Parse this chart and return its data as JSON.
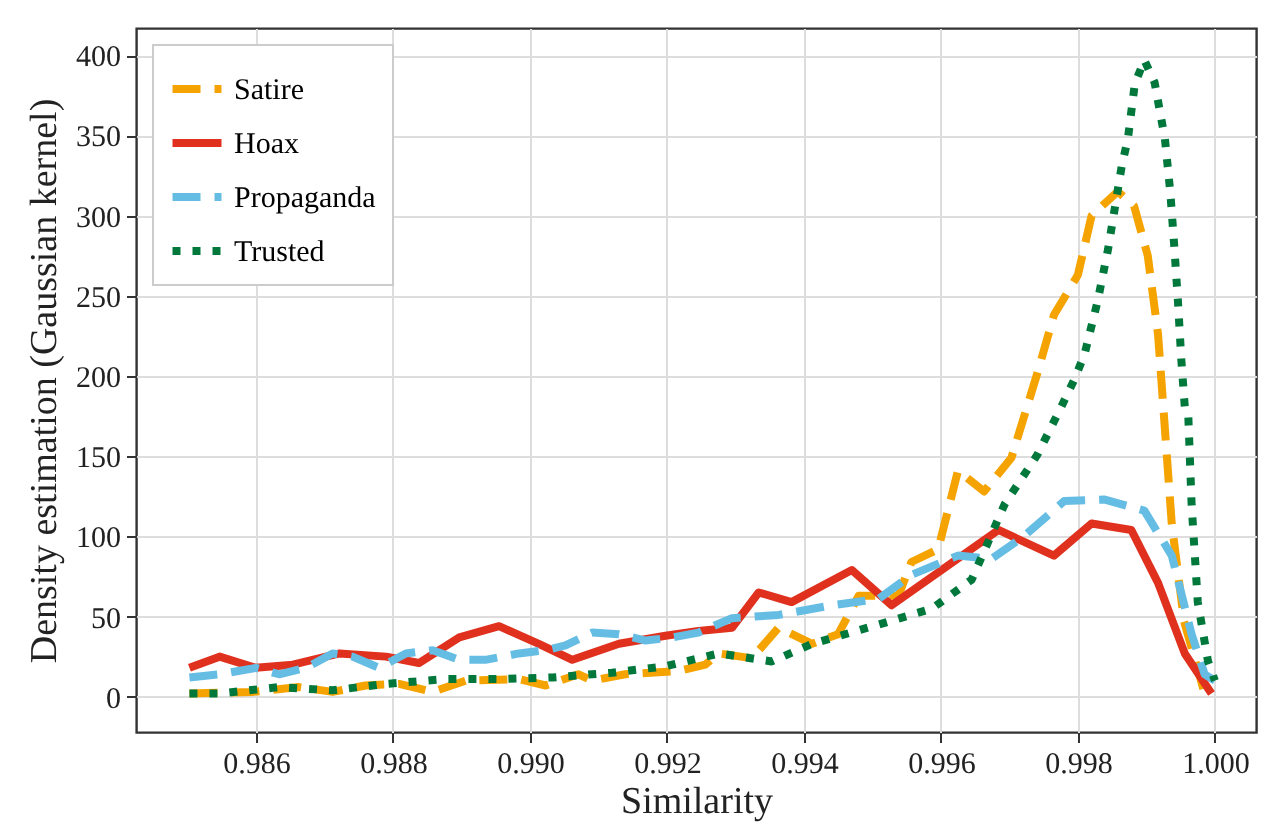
{
  "chart_data": {
    "type": "line",
    "xlabel": "Similarity",
    "ylabel": "Density estimation (Gaussian kernel)",
    "xlim": [
      0.98425,
      1.0006
    ],
    "ylim": [
      -22,
      417
    ],
    "xticks": [
      0.986,
      0.988,
      {
        "value": 0.99,
        "label": "0.990"
      },
      0.992,
      0.994,
      0.996,
      0.998,
      {
        "value": 1,
        "label": "1.000"
      }
    ],
    "yticks": [
      0,
      50,
      100,
      150,
      200,
      250,
      300,
      350,
      400
    ],
    "grid": true,
    "legend": "top left",
    "series": [
      {
        "name": "Satire",
        "color": "#f5a300",
        "line_style": "dashed",
        "x": [
          0.98503,
          0.98595,
          0.98663,
          0.98712,
          0.9876,
          0.98809,
          0.98858,
          0.98906,
          0.98984,
          0.99023,
          0.99071,
          0.99091,
          0.99139,
          0.99217,
          0.99256,
          0.99276,
          0.99324,
          0.99363,
          0.99412,
          0.9945,
          0.9948,
          0.99538,
          0.99557,
          0.99596,
          0.99625,
          0.99663,
          0.99703,
          0.99741,
          0.99765,
          0.998,
          0.9982,
          0.99858,
          0.99882,
          0.99902,
          0.99917,
          0.99937,
          0.99955,
          0.99985
        ],
        "values": [
          2,
          3,
          6,
          3,
          7,
          8,
          3,
          10,
          11,
          7,
          14,
          10,
          14,
          16,
          20,
          27,
          24,
          43,
          33,
          39,
          63,
          63,
          84,
          92,
          141,
          128,
          149,
          202,
          238,
          263,
          300,
          315,
          306,
          275,
          226,
          108,
          47,
          2
        ]
      },
      {
        "name": "Hoax",
        "color": "#e0301e",
        "line_style": "solid",
        "x": [
          0.98503,
          0.98547,
          0.986,
          0.98654,
          0.98722,
          0.9879,
          0.98838,
          0.98897,
          0.98955,
          0.99013,
          0.99062,
          0.9913,
          0.99198,
          0.99246,
          0.99295,
          0.99334,
          0.99382,
          0.9947,
          0.99528,
          0.99684,
          0.99765,
          0.9982,
          0.99878,
          0.99917,
          0.99956,
          0.99995
        ],
        "values": [
          18,
          25,
          18,
          20,
          27,
          25,
          21,
          37,
          44,
          33,
          23,
          33,
          38,
          41,
          43,
          65,
          59,
          79,
          57,
          104,
          88,
          108,
          104,
          71,
          27,
          2
        ]
      },
      {
        "name": "Propaganda",
        "color": "#66bde3",
        "line_style": "dashed",
        "x": [
          0.98503,
          0.98547,
          0.986,
          0.98634,
          0.98673,
          0.98712,
          0.98741,
          0.9878,
          0.98819,
          0.98858,
          0.98897,
          0.98935,
          0.98984,
          0.99023,
          0.99052,
          0.99091,
          0.9913,
          0.99169,
          0.99208,
          0.99246,
          0.99295,
          0.99363,
          0.99441,
          0.99509,
          0.99557,
          0.99625,
          0.99674,
          0.99721,
          0.9978,
          0.99838,
          0.99897,
          0.99937,
          0.99966,
          0.99985,
          1.0
        ],
        "values": [
          12,
          14,
          18,
          14,
          18,
          27,
          25,
          18,
          27,
          29,
          23,
          23,
          27,
          29,
          32,
          40,
          39,
          35,
          37,
          40,
          49,
          51,
          57,
          61,
          76,
          88,
          86,
          100,
          122,
          123,
          116,
          88,
          39,
          14,
          10
        ]
      },
      {
        "name": "Trusted",
        "color": "#00783c",
        "line_style": "dotted",
        "x": [
          0.98503,
          0.98547,
          0.98634,
          0.98712,
          0.9879,
          0.98877,
          0.98955,
          0.99033,
          0.9912,
          0.99198,
          0.99276,
          0.99353,
          0.99412,
          0.99509,
          0.99587,
          0.99645,
          0.99693,
          0.99741,
          0.99776,
          0.99795,
          0.9981,
          0.99829,
          0.99844,
          0.99864,
          0.99873,
          0.99883,
          0.99897,
          0.99912,
          0.99927,
          0.99935,
          0.99941,
          0.99946,
          0.99951,
          0.99956,
          0.99961,
          0.99966,
          0.99975,
          0.9999,
          1.0
        ],
        "values": [
          2,
          2,
          6,
          4,
          8,
          11,
          11,
          12,
          15,
          19,
          27,
          22,
          33,
          45,
          55,
          73,
          120,
          151,
          181,
          198,
          214,
          247,
          279,
          331,
          348,
          382,
          397,
          383,
          348,
          314,
          279,
          247,
          210,
          181,
          177,
          120,
          59,
          22,
          10
        ]
      }
    ]
  }
}
